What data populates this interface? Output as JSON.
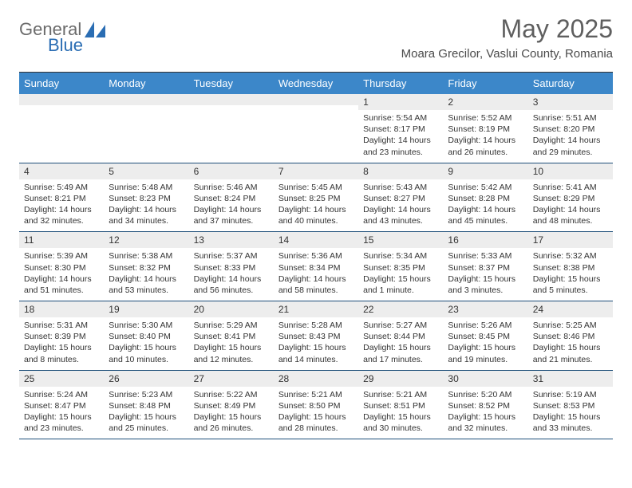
{
  "logo": {
    "word1": "General",
    "word2": "Blue"
  },
  "title": "May 2025",
  "location": "Moara Grecilor, Vaslui County, Romania",
  "colors": {
    "header_bg": "#3c87c9",
    "header_text": "#ffffff",
    "daynum_bg": "#ededed",
    "week_border": "#1e4f7a",
    "logo_gray": "#6b6b6b",
    "logo_blue": "#2a6db3"
  },
  "dow": [
    "Sunday",
    "Monday",
    "Tuesday",
    "Wednesday",
    "Thursday",
    "Friday",
    "Saturday"
  ],
  "weeks": [
    [
      {
        "n": "",
        "sr": "",
        "ss": "",
        "dl": ""
      },
      {
        "n": "",
        "sr": "",
        "ss": "",
        "dl": ""
      },
      {
        "n": "",
        "sr": "",
        "ss": "",
        "dl": ""
      },
      {
        "n": "",
        "sr": "",
        "ss": "",
        "dl": ""
      },
      {
        "n": "1",
        "sr": "Sunrise: 5:54 AM",
        "ss": "Sunset: 8:17 PM",
        "dl": "Daylight: 14 hours and 23 minutes."
      },
      {
        "n": "2",
        "sr": "Sunrise: 5:52 AM",
        "ss": "Sunset: 8:19 PM",
        "dl": "Daylight: 14 hours and 26 minutes."
      },
      {
        "n": "3",
        "sr": "Sunrise: 5:51 AM",
        "ss": "Sunset: 8:20 PM",
        "dl": "Daylight: 14 hours and 29 minutes."
      }
    ],
    [
      {
        "n": "4",
        "sr": "Sunrise: 5:49 AM",
        "ss": "Sunset: 8:21 PM",
        "dl": "Daylight: 14 hours and 32 minutes."
      },
      {
        "n": "5",
        "sr": "Sunrise: 5:48 AM",
        "ss": "Sunset: 8:23 PM",
        "dl": "Daylight: 14 hours and 34 minutes."
      },
      {
        "n": "6",
        "sr": "Sunrise: 5:46 AM",
        "ss": "Sunset: 8:24 PM",
        "dl": "Daylight: 14 hours and 37 minutes."
      },
      {
        "n": "7",
        "sr": "Sunrise: 5:45 AM",
        "ss": "Sunset: 8:25 PM",
        "dl": "Daylight: 14 hours and 40 minutes."
      },
      {
        "n": "8",
        "sr": "Sunrise: 5:43 AM",
        "ss": "Sunset: 8:27 PM",
        "dl": "Daylight: 14 hours and 43 minutes."
      },
      {
        "n": "9",
        "sr": "Sunrise: 5:42 AM",
        "ss": "Sunset: 8:28 PM",
        "dl": "Daylight: 14 hours and 45 minutes."
      },
      {
        "n": "10",
        "sr": "Sunrise: 5:41 AM",
        "ss": "Sunset: 8:29 PM",
        "dl": "Daylight: 14 hours and 48 minutes."
      }
    ],
    [
      {
        "n": "11",
        "sr": "Sunrise: 5:39 AM",
        "ss": "Sunset: 8:30 PM",
        "dl": "Daylight: 14 hours and 51 minutes."
      },
      {
        "n": "12",
        "sr": "Sunrise: 5:38 AM",
        "ss": "Sunset: 8:32 PM",
        "dl": "Daylight: 14 hours and 53 minutes."
      },
      {
        "n": "13",
        "sr": "Sunrise: 5:37 AM",
        "ss": "Sunset: 8:33 PM",
        "dl": "Daylight: 14 hours and 56 minutes."
      },
      {
        "n": "14",
        "sr": "Sunrise: 5:36 AM",
        "ss": "Sunset: 8:34 PM",
        "dl": "Daylight: 14 hours and 58 minutes."
      },
      {
        "n": "15",
        "sr": "Sunrise: 5:34 AM",
        "ss": "Sunset: 8:35 PM",
        "dl": "Daylight: 15 hours and 1 minute."
      },
      {
        "n": "16",
        "sr": "Sunrise: 5:33 AM",
        "ss": "Sunset: 8:37 PM",
        "dl": "Daylight: 15 hours and 3 minutes."
      },
      {
        "n": "17",
        "sr": "Sunrise: 5:32 AM",
        "ss": "Sunset: 8:38 PM",
        "dl": "Daylight: 15 hours and 5 minutes."
      }
    ],
    [
      {
        "n": "18",
        "sr": "Sunrise: 5:31 AM",
        "ss": "Sunset: 8:39 PM",
        "dl": "Daylight: 15 hours and 8 minutes."
      },
      {
        "n": "19",
        "sr": "Sunrise: 5:30 AM",
        "ss": "Sunset: 8:40 PM",
        "dl": "Daylight: 15 hours and 10 minutes."
      },
      {
        "n": "20",
        "sr": "Sunrise: 5:29 AM",
        "ss": "Sunset: 8:41 PM",
        "dl": "Daylight: 15 hours and 12 minutes."
      },
      {
        "n": "21",
        "sr": "Sunrise: 5:28 AM",
        "ss": "Sunset: 8:43 PM",
        "dl": "Daylight: 15 hours and 14 minutes."
      },
      {
        "n": "22",
        "sr": "Sunrise: 5:27 AM",
        "ss": "Sunset: 8:44 PM",
        "dl": "Daylight: 15 hours and 17 minutes."
      },
      {
        "n": "23",
        "sr": "Sunrise: 5:26 AM",
        "ss": "Sunset: 8:45 PM",
        "dl": "Daylight: 15 hours and 19 minutes."
      },
      {
        "n": "24",
        "sr": "Sunrise: 5:25 AM",
        "ss": "Sunset: 8:46 PM",
        "dl": "Daylight: 15 hours and 21 minutes."
      }
    ],
    [
      {
        "n": "25",
        "sr": "Sunrise: 5:24 AM",
        "ss": "Sunset: 8:47 PM",
        "dl": "Daylight: 15 hours and 23 minutes."
      },
      {
        "n": "26",
        "sr": "Sunrise: 5:23 AM",
        "ss": "Sunset: 8:48 PM",
        "dl": "Daylight: 15 hours and 25 minutes."
      },
      {
        "n": "27",
        "sr": "Sunrise: 5:22 AM",
        "ss": "Sunset: 8:49 PM",
        "dl": "Daylight: 15 hours and 26 minutes."
      },
      {
        "n": "28",
        "sr": "Sunrise: 5:21 AM",
        "ss": "Sunset: 8:50 PM",
        "dl": "Daylight: 15 hours and 28 minutes."
      },
      {
        "n": "29",
        "sr": "Sunrise: 5:21 AM",
        "ss": "Sunset: 8:51 PM",
        "dl": "Daylight: 15 hours and 30 minutes."
      },
      {
        "n": "30",
        "sr": "Sunrise: 5:20 AM",
        "ss": "Sunset: 8:52 PM",
        "dl": "Daylight: 15 hours and 32 minutes."
      },
      {
        "n": "31",
        "sr": "Sunrise: 5:19 AM",
        "ss": "Sunset: 8:53 PM",
        "dl": "Daylight: 15 hours and 33 minutes."
      }
    ]
  ]
}
